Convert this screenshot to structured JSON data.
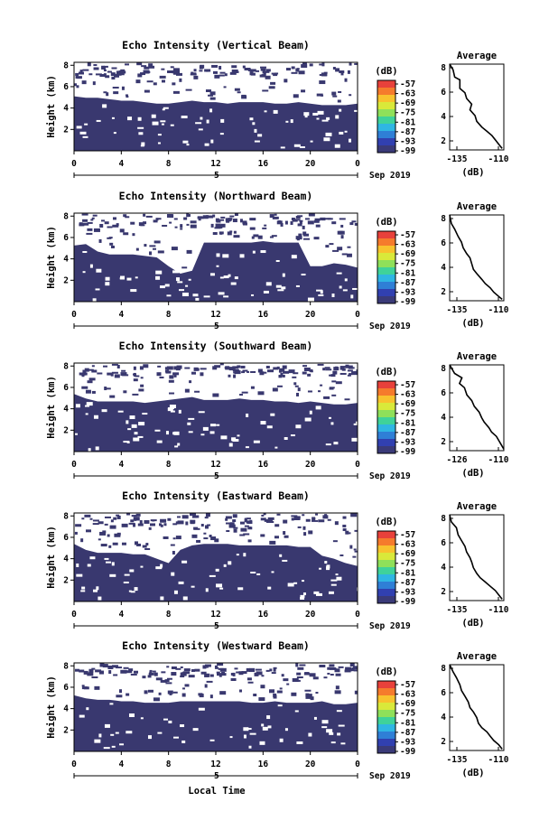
{
  "figure": {
    "x_axis_title": "Local Time",
    "date_label": "Sep 2019",
    "day_label": "5",
    "colorbar_unit": "(dB)",
    "colorbar_ticks": [
      "-57",
      "-63",
      "-69",
      "-75",
      "-81",
      "-87",
      "-93",
      "-99"
    ],
    "colorbar_colors": [
      "#e8413b",
      "#f57b2c",
      "#f8c22e",
      "#d9e93a",
      "#8fe05a",
      "#3fd29a",
      "#2fb6e3",
      "#2f7fd6",
      "#3140b0",
      "#3a3a78"
    ],
    "echo_color": "#39386f",
    "average_title": "Average",
    "average_xlabel": "(dB)"
  },
  "chart_data": [
    {
      "type": "heatmap",
      "title": "Echo Intensity (Vertical Beam)",
      "ylabel": "Height (km)",
      "xlim": [
        0,
        24
      ],
      "ylim": [
        0,
        6
      ],
      "x_ticks": [
        "0",
        "4",
        "8",
        "12",
        "16",
        "20",
        "0"
      ],
      "y_ticks": [
        "2",
        "4",
        "6",
        "8"
      ],
      "layer_top_km": [
        3.7,
        3.6,
        3.6,
        3.5,
        3.4,
        3.4,
        3.3,
        3.2,
        3.2,
        3.3,
        3.4,
        3.3,
        3.3,
        3.2,
        3.3,
        3.3,
        3.3,
        3.2,
        3.2,
        3.3,
        3.2,
        3.1,
        3.1,
        3.1,
        3.2
      ]
    },
    {
      "type": "heatmap",
      "title": "Echo Intensity (Northward Beam)",
      "ylabel": "Height (km)",
      "xlim": [
        0,
        24
      ],
      "ylim": [
        0,
        6
      ],
      "x_ticks": [
        "0",
        "4",
        "8",
        "12",
        "16",
        "20",
        "0"
      ],
      "y_ticks": [
        "2",
        "4",
        "6",
        "8"
      ],
      "layer_top_km": [
        3.8,
        3.9,
        3.4,
        3.2,
        3.2,
        3.2,
        3.1,
        3.0,
        2.4,
        1.9,
        2.1,
        4.0,
        4.0,
        4.0,
        4.0,
        4.0,
        4.1,
        4.0,
        4.0,
        4.0,
        2.4,
        2.4,
        2.6,
        2.5,
        2.3
      ]
    },
    {
      "type": "heatmap",
      "title": "Echo Intensity (Southward Beam)",
      "ylabel": "Height (km)",
      "xlim": [
        0,
        24
      ],
      "ylim": [
        0,
        6
      ],
      "x_ticks": [
        "0",
        "4",
        "8",
        "12",
        "16",
        "20",
        "0"
      ],
      "y_ticks": [
        "2",
        "4",
        "6",
        "8"
      ],
      "layer_top_km": [
        3.9,
        3.6,
        3.4,
        3.4,
        3.4,
        3.4,
        3.3,
        3.4,
        3.5,
        3.6,
        3.7,
        3.5,
        3.5,
        3.5,
        3.6,
        3.5,
        3.5,
        3.4,
        3.4,
        3.3,
        3.4,
        3.3,
        3.2,
        3.2,
        3.3
      ]
    },
    {
      "type": "heatmap",
      "title": "Echo Intensity (Eastward Beam)",
      "ylabel": "Height (km)",
      "xlim": [
        0,
        24
      ],
      "ylim": [
        0,
        6
      ],
      "x_ticks": [
        "0",
        "4",
        "8",
        "12",
        "16",
        "20",
        "0"
      ],
      "y_ticks": [
        "2",
        "4",
        "6",
        "8"
      ],
      "layer_top_km": [
        3.9,
        3.5,
        3.3,
        3.3,
        3.3,
        3.2,
        3.2,
        2.9,
        2.6,
        3.5,
        3.8,
        3.9,
        3.9,
        3.9,
        3.8,
        3.8,
        3.8,
        3.8,
        3.8,
        3.7,
        3.7,
        3.1,
        2.9,
        2.6,
        2.4
      ]
    },
    {
      "type": "heatmap",
      "title": "Echo Intensity (Westward Beam)",
      "ylabel": "Height (km)",
      "xlim": [
        0,
        24
      ],
      "ylim": [
        0,
        6
      ],
      "x_ticks": [
        "0",
        "4",
        "8",
        "12",
        "16",
        "20",
        "0"
      ],
      "y_ticks": [
        "2",
        "4",
        "6",
        "8"
      ],
      "layer_top_km": [
        3.8,
        3.6,
        3.5,
        3.5,
        3.4,
        3.4,
        3.3,
        3.3,
        3.3,
        3.4,
        3.4,
        3.4,
        3.4,
        3.4,
        3.4,
        3.3,
        3.3,
        3.4,
        3.3,
        3.3,
        3.3,
        3.4,
        3.2,
        3.2,
        3.3
      ]
    },
    {
      "type": "line",
      "title": "Average",
      "xlabel": "(dB)",
      "x_ticks": [
        "-135",
        "-110"
      ],
      "y_ticks": [
        "2",
        "4",
        "6",
        "8"
      ],
      "xlim": [
        -140,
        -108
      ],
      "ylim": [
        0,
        6
      ],
      "x": [
        -140,
        -138,
        -137,
        -134,
        -134,
        -131,
        -130,
        -127,
        -128,
        -125,
        -124,
        -121,
        -118,
        -115,
        -113,
        -111,
        -109
      ],
      "y": [
        6.0,
        5.6,
        5.1,
        4.9,
        4.3,
        4.0,
        3.6,
        3.2,
        2.8,
        2.4,
        2.0,
        1.6,
        1.3,
        1.0,
        0.7,
        0.4,
        0.1
      ]
    },
    {
      "type": "line",
      "title": "Average",
      "xlabel": "(dB)",
      "x_ticks": [
        "-135",
        "-110"
      ],
      "y_ticks": [
        "2",
        "4",
        "6",
        "8"
      ],
      "xlim": [
        -140,
        -108
      ],
      "ylim": [
        0,
        6
      ],
      "x": [
        -140,
        -139,
        -137,
        -135,
        -133,
        -132,
        -130,
        -128,
        -127,
        -126,
        -124,
        -121,
        -119,
        -116,
        -114,
        -111,
        -109
      ],
      "y": [
        6.0,
        5.4,
        5.0,
        4.5,
        4.1,
        3.7,
        3.3,
        3.0,
        2.6,
        2.2,
        1.9,
        1.5,
        1.2,
        0.9,
        0.6,
        0.3,
        0.1
      ]
    },
    {
      "type": "line",
      "title": "Average",
      "xlabel": "(dB)",
      "x_ticks": [
        "-126",
        "-110"
      ],
      "y_ticks": [
        "2",
        "4",
        "6",
        "8"
      ],
      "xlim": [
        -130,
        -108
      ],
      "ylim": [
        0,
        6
      ],
      "x": [
        -130,
        -128,
        -125,
        -126,
        -124,
        -123,
        -121,
        -120,
        -118,
        -117,
        -116,
        -114,
        -113,
        -111,
        -110,
        -109,
        -108
      ],
      "y": [
        6.0,
        5.4,
        5.1,
        4.7,
        4.4,
        3.9,
        3.5,
        3.1,
        2.7,
        2.3,
        2.0,
        1.6,
        1.3,
        1.0,
        0.7,
        0.4,
        0.1
      ]
    },
    {
      "type": "line",
      "title": "Average",
      "xlabel": "(dB)",
      "x_ticks": [
        "-135",
        "-110"
      ],
      "y_ticks": [
        "2",
        "4",
        "6",
        "8"
      ],
      "xlim": [
        -140,
        -108
      ],
      "ylim": [
        0,
        6
      ],
      "x": [
        -140,
        -139,
        -136,
        -135,
        -133,
        -131,
        -130,
        -128,
        -127,
        -126,
        -124,
        -122,
        -119,
        -116,
        -113,
        -111,
        -109
      ],
      "y": [
        6.0,
        5.5,
        5.1,
        4.6,
        4.2,
        3.8,
        3.4,
        3.0,
        2.7,
        2.3,
        1.9,
        1.6,
        1.3,
        1.0,
        0.7,
        0.4,
        0.1
      ]
    },
    {
      "type": "line",
      "title": "Average",
      "xlabel": "(dB)",
      "x_ticks": [
        "-135",
        "-110"
      ],
      "y_ticks": [
        "2",
        "4",
        "6",
        "8"
      ],
      "xlim": [
        -140,
        -108
      ],
      "ylim": [
        0,
        6
      ],
      "x": [
        -140,
        -138,
        -136,
        -134,
        -133,
        -131,
        -129,
        -128,
        -126,
        -124,
        -123,
        -121,
        -118,
        -116,
        -114,
        -111,
        -109
      ],
      "y": [
        6.0,
        5.5,
        5.1,
        4.6,
        4.2,
        3.8,
        3.4,
        3.0,
        2.7,
        2.3,
        1.9,
        1.6,
        1.3,
        1.0,
        0.7,
        0.4,
        0.1
      ]
    }
  ]
}
